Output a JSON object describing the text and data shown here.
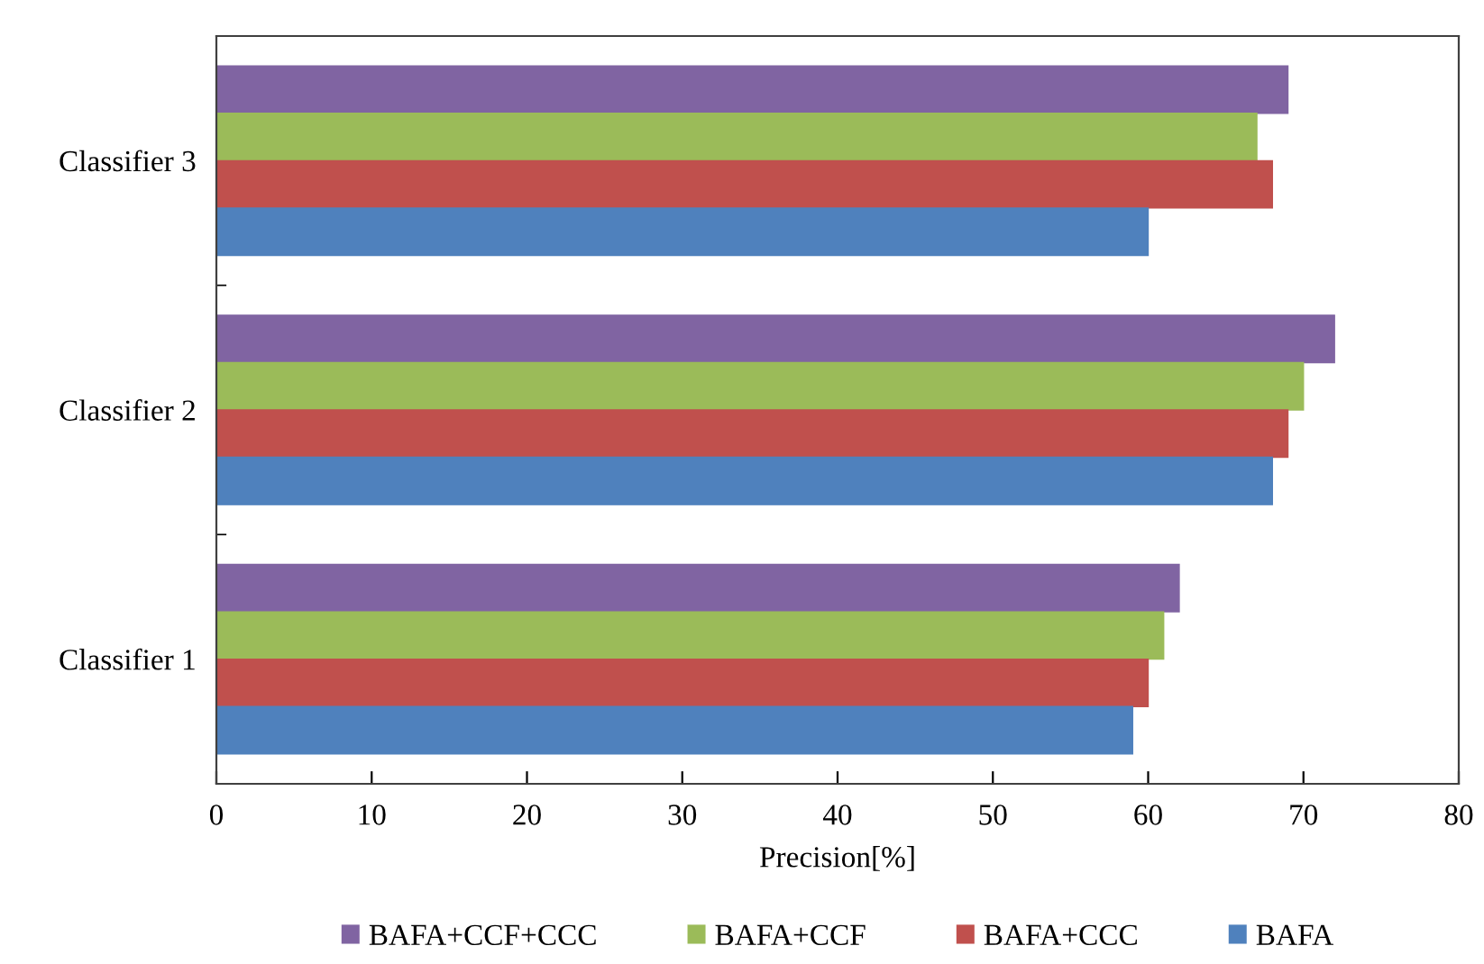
{
  "chart_data": {
    "type": "bar",
    "orientation": "horizontal",
    "xlabel": "Precision[%]",
    "categories": [
      "Classifier 3",
      "Classifier 2",
      "Classifier 1"
    ],
    "series": [
      {
        "name": "BAFA+CCF+CCC",
        "color": "#8064a2",
        "values": [
          69,
          72,
          62
        ]
      },
      {
        "name": "BAFA+CCF",
        "color": "#9bbb59",
        "values": [
          67,
          70,
          61
        ]
      },
      {
        "name": "BAFA+CCC",
        "color": "#c0504d",
        "values": [
          68,
          69,
          60
        ]
      },
      {
        "name": "BAFA",
        "color": "#4f81bd",
        "values": [
          60,
          68,
          59
        ]
      }
    ],
    "xlim": [
      0,
      80
    ],
    "xticks": [
      0,
      10,
      20,
      30,
      40,
      50,
      60,
      70,
      80
    ],
    "grid": false,
    "legend": "bottom"
  }
}
